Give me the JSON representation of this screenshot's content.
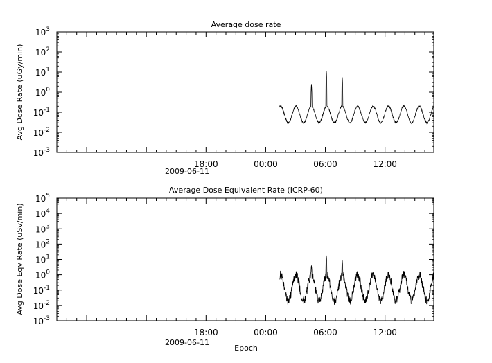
{
  "chart_data": [
    {
      "type": "line",
      "title": "Average dose rate",
      "ylabel": "Avg Dose Rate (uGy/min)",
      "xlabel": "",
      "yscale": "log",
      "ylim": [
        0.001,
        1000
      ],
      "y_ticks": [
        {
          "base": "10",
          "exp": "-3",
          "value": 0.001
        },
        {
          "base": "10",
          "exp": "-2",
          "value": 0.01
        },
        {
          "base": "10",
          "exp": "-1",
          "value": 0.1
        },
        {
          "base": "10",
          "exp": "0",
          "value": 1
        },
        {
          "base": "10",
          "exp": "1",
          "value": 10
        },
        {
          "base": "10",
          "exp": "2",
          "value": 100
        },
        {
          "base": "10",
          "exp": "3",
          "value": 1000
        }
      ],
      "xlim_hours": [
        -21,
        16.9
      ],
      "x_ticks": [
        {
          "label": "18:00",
          "hour": -6
        },
        {
          "label": "00:00",
          "hour": 0
        },
        {
          "label": "06:00",
          "hour": 6
        },
        {
          "label": "12:00",
          "hour": 12
        }
      ],
      "date_label": "2009-06-11",
      "data_start_hour": 1.4,
      "data_end_hour": 16.9,
      "baseline_min": 0.03,
      "baseline_max": 0.2,
      "spikes": [
        {
          "hour": 4.6,
          "value": 2.5
        },
        {
          "hour": 6.1,
          "value": 11
        },
        {
          "hour": 7.7,
          "value": 5.5
        }
      ],
      "grid": false
    },
    {
      "type": "line",
      "title": "Average Dose Equivalent Rate (ICRP-60)",
      "ylabel": "Avg Dose Eqv Rate (uSv/min)",
      "xlabel": "Epoch",
      "yscale": "log",
      "ylim": [
        0.001,
        100000
      ],
      "y_ticks": [
        {
          "base": "10",
          "exp": "-3",
          "value": 0.001
        },
        {
          "base": "10",
          "exp": "-2",
          "value": 0.01
        },
        {
          "base": "10",
          "exp": "-1",
          "value": 0.1
        },
        {
          "base": "10",
          "exp": "0",
          "value": 1
        },
        {
          "base": "10",
          "exp": "1",
          "value": 10
        },
        {
          "base": "10",
          "exp": "2",
          "value": 100
        },
        {
          "base": "10",
          "exp": "3",
          "value": 1000
        },
        {
          "base": "10",
          "exp": "4",
          "value": 10000
        },
        {
          "base": "10",
          "exp": "5",
          "value": 100000
        }
      ],
      "xlim_hours": [
        -21,
        16.9
      ],
      "x_ticks": [
        {
          "label": "18:00",
          "hour": -6
        },
        {
          "label": "00:00",
          "hour": 0
        },
        {
          "label": "06:00",
          "hour": 6
        },
        {
          "label": "12:00",
          "hour": 12
        }
      ],
      "date_label": "2009-06-11",
      "data_start_hour": 1.4,
      "data_end_hour": 16.9,
      "baseline_min": 0.02,
      "baseline_max": 1.0,
      "spikes": [
        {
          "hour": 4.6,
          "value": 4
        },
        {
          "hour": 6.1,
          "value": 18
        },
        {
          "hour": 7.7,
          "value": 9
        }
      ],
      "grid": false
    }
  ]
}
